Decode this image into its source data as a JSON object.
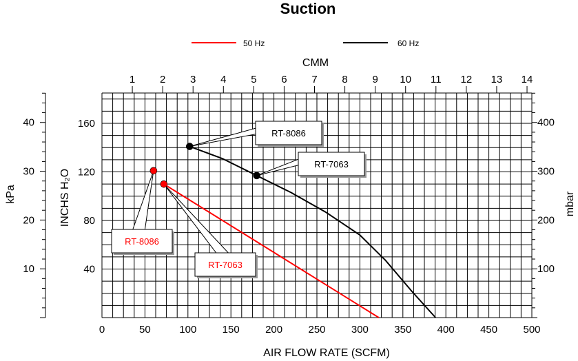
{
  "chart_data": {
    "type": "line",
    "title": "Suction",
    "xlabel": "AIR FLOW RATE (SCFM)",
    "x2label": "CMM",
    "ylabel": "INCHS H₂O",
    "y_left_outer_label": "kPa",
    "y_right_label": "mbar",
    "xlim": [
      0,
      500
    ],
    "ylim": [
      0,
      185
    ],
    "x_ticks": [
      "0",
      "50",
      "100",
      "150",
      "200",
      "250",
      "300",
      "350",
      "400",
      "450",
      "500"
    ],
    "x2_ticks": [
      "1",
      "2",
      "3",
      "4",
      "5",
      "6",
      "7",
      "8",
      "9",
      "10",
      "11",
      "12",
      "13",
      "14"
    ],
    "y_ticks": [
      "40",
      "80",
      "120",
      "160"
    ],
    "kpa_ticks": [
      "10",
      "20",
      "30",
      "40"
    ],
    "mbar_ticks": [
      "100",
      "200",
      "300",
      "400"
    ],
    "grid": true,
    "legend_position": "top",
    "series": [
      {
        "name": "50 Hz",
        "color": "#ff0000",
        "x": [
          72,
          322
        ],
        "y": [
          110,
          0
        ]
      },
      {
        "name": "60 Hz",
        "color": "#000000",
        "x": [
          102,
          140,
          180,
          220,
          260,
          300,
          330,
          360,
          388
        ],
        "y": [
          141,
          131,
          117,
          103,
          87,
          68,
          47,
          22,
          0
        ]
      }
    ],
    "points": [
      {
        "label": "RT-8086",
        "series": "60 Hz",
        "x": 102,
        "y": 141,
        "color": "#000000",
        "box_color": "#000000"
      },
      {
        "label": "RT-7063",
        "series": "60 Hz",
        "x": 180,
        "y": 117,
        "color": "#000000",
        "box_color": "#000000"
      },
      {
        "label": "RT-8086",
        "series": "50 Hz",
        "x": 60,
        "y": 121,
        "color": "#ff0000",
        "box_color": "#ff0000"
      },
      {
        "label": "RT-7063",
        "series": "50 Hz",
        "x": 72,
        "y": 110,
        "color": "#ff0000",
        "box_color": "#ff0000"
      }
    ]
  }
}
